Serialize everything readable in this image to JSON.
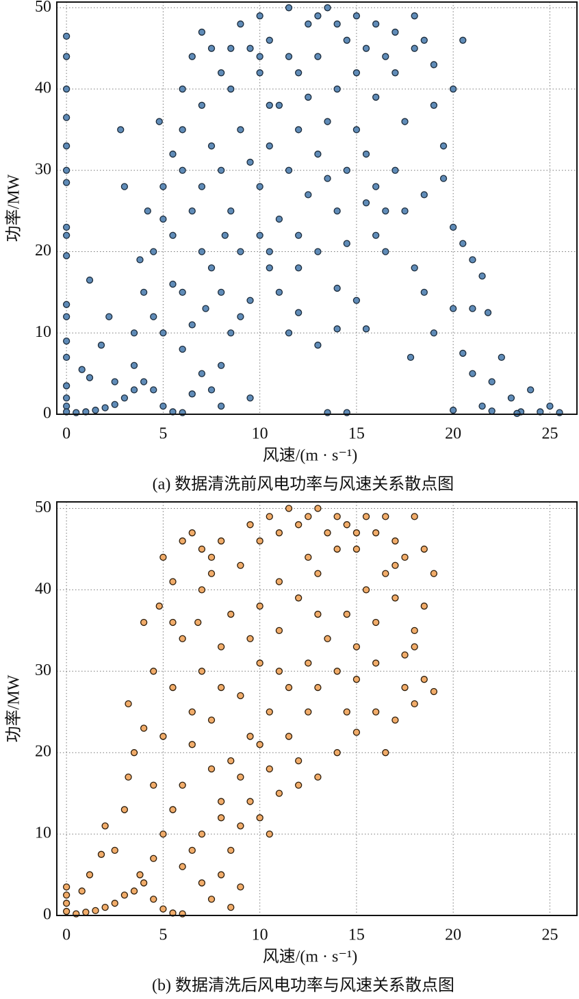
{
  "chart_data": [
    {
      "type": "scatter",
      "title": "(a) 数据清洗前风电功率与风速关系散点图",
      "x_label": "风速/(m · s⁻¹)",
      "y_label": "功率/MW",
      "color": "#4f80b0",
      "edge_color": "#1a2a3a",
      "grid": true,
      "xlim": [
        -0.5,
        26.4
      ],
      "ylim": [
        0,
        50.7
      ],
      "xticks": [
        0,
        5,
        10,
        15,
        20,
        25
      ],
      "yticks": [
        0,
        10,
        20,
        30,
        40,
        50
      ],
      "x": [
        0,
        0,
        0,
        0,
        0,
        0,
        0,
        0,
        0,
        0,
        0,
        0,
        0,
        0,
        0,
        0,
        0,
        0,
        0.5,
        1,
        1.5,
        2,
        2.5,
        3,
        3.5,
        4,
        4.5,
        5,
        5.5,
        6,
        1.2,
        0.8,
        1.8,
        1.2,
        2.8,
        3,
        2.2,
        3.5,
        4,
        4.5,
        4.2,
        5,
        5.5,
        4.8,
        6,
        6.5,
        7,
        7.5,
        8,
        7,
        6,
        5.5,
        6.5,
        7,
        6,
        5,
        6,
        7,
        7.5,
        8,
        8.5,
        9,
        8,
        7.5,
        9,
        8.5,
        8,
        9,
        8.5,
        9.5,
        9,
        10,
        10.5,
        10,
        11,
        10.5,
        10,
        10,
        10.5,
        11,
        9.5,
        11,
        11.5,
        12,
        12,
        12.5,
        11.5,
        13,
        13.5,
        14,
        14.5,
        13,
        14,
        13.5,
        13,
        12.5,
        12,
        13,
        14,
        14.5,
        15,
        15,
        15.5,
        16,
        16.5,
        16,
        15.5,
        16,
        17,
        17.5,
        17,
        18,
        18.5,
        19,
        17.5,
        18.5,
        19.5,
        19,
        20,
        20.5,
        19.5,
        20,
        20.5,
        21,
        21.5,
        21,
        21.8,
        20,
        19,
        20.5,
        21,
        22,
        22.5,
        23,
        21.5,
        20,
        22,
        23.5,
        24,
        25,
        25.5,
        24.5,
        16.5,
        18,
        18.5,
        16,
        15,
        14,
        15.5,
        14,
        13,
        13.5,
        14.5,
        16.5,
        12,
        11.5,
        10.5,
        12,
        3.5,
        2.5,
        4.5,
        5.5,
        3.8,
        5,
        6.5,
        7.2,
        8.2,
        9.5,
        7.5,
        10.5,
        11.5,
        12.5,
        13.5,
        14.5,
        15.5,
        17,
        18,
        15,
        10,
        6,
        7,
        8.5,
        9.5,
        8,
        6.5,
        17.8,
        23.3
      ],
      "values": [
        46.5,
        44,
        40,
        36.5,
        33,
        30,
        28.5,
        23,
        22,
        19.5,
        13.5,
        12,
        9,
        7,
        3.5,
        2,
        1,
        0.3,
        0.2,
        0.3,
        0.5,
        0.8,
        1.2,
        2,
        3,
        4,
        3,
        1,
        0.3,
        0.2,
        4.5,
        5.5,
        8.5,
        16.5,
        35,
        28,
        12,
        10,
        15,
        20,
        25,
        28,
        32,
        36,
        40,
        44,
        47,
        45,
        42,
        38,
        30,
        22,
        25,
        20,
        15,
        10,
        8,
        5,
        3,
        6,
        10,
        12,
        15,
        18,
        20,
        25,
        30,
        35,
        40,
        45,
        48,
        49,
        46,
        42,
        38,
        33,
        28,
        22,
        18,
        15,
        14,
        24,
        30,
        35,
        42,
        48,
        50,
        49,
        50,
        48,
        46,
        44,
        40,
        36,
        32,
        27,
        22,
        20,
        25,
        30,
        35,
        42,
        45,
        48,
        44,
        39,
        32,
        28,
        30,
        36,
        42,
        45,
        46,
        43,
        25,
        27,
        33,
        38,
        40,
        46,
        29,
        23,
        21,
        19,
        17,
        13,
        12.5,
        13,
        10,
        7.5,
        5,
        4,
        7,
        2,
        1,
        0.5,
        0.4,
        0.3,
        3,
        1,
        0.2,
        0.3,
        20,
        18,
        15,
        22,
        14,
        10.5,
        10.5,
        15.5,
        8.5,
        0.2,
        0.2,
        25,
        12.5,
        10,
        20,
        18,
        6,
        4,
        12,
        16,
        19,
        24,
        11,
        13,
        22,
        31,
        33,
        38,
        44,
        39,
        29,
        21,
        26,
        47,
        49,
        49,
        44,
        35,
        28,
        45,
        2,
        1,
        2.5,
        7,
        0.1
      ]
    },
    {
      "type": "scatter",
      "title": "(b) 数据清洗后风电功率与风速关系散点图",
      "x_label": "风速/(m · s⁻¹)",
      "y_label": "功率/MW",
      "color": "#f0a35a",
      "edge_color": "#2a1a08",
      "grid": true,
      "xlim": [
        -0.5,
        26.4
      ],
      "ylim": [
        0,
        50.8
      ],
      "xticks": [
        0,
        5,
        10,
        15,
        20,
        25
      ],
      "yticks": [
        0,
        10,
        20,
        30,
        40,
        50
      ],
      "x": [
        0,
        0,
        0,
        0,
        0.5,
        1,
        1.5,
        2,
        2.5,
        3,
        3.5,
        4,
        4.5,
        5,
        5.5,
        6,
        1.2,
        0.8,
        1.8,
        2,
        2.5,
        3,
        3.2,
        3.5,
        3.2,
        4,
        4.5,
        4,
        4.8,
        5,
        5.5,
        6,
        6.5,
        7,
        7.5,
        8,
        7,
        6,
        5.5,
        5,
        4.5,
        5,
        6,
        7,
        7.5,
        8,
        8.5,
        9,
        8,
        7.5,
        6.5,
        6.5,
        7,
        8,
        8.5,
        9,
        9.5,
        10,
        10.5,
        11,
        11.5,
        12,
        12.5,
        13,
        13.5,
        14,
        14.5,
        15,
        15.5,
        16,
        16.5,
        17,
        17.5,
        18,
        18.5,
        19,
        18.5,
        18,
        17.5,
        18.5,
        19,
        18,
        17,
        16,
        15,
        14.5,
        14,
        13,
        12,
        11,
        10,
        9.5,
        10.5,
        11.5,
        12.5,
        13,
        14,
        15,
        16,
        17,
        16.5,
        15.5,
        14.5,
        13.5,
        12.5,
        11.5,
        10.5,
        9.5,
        8.5,
        9,
        10,
        11,
        12,
        13,
        14,
        12.5,
        11,
        10,
        9.5,
        8,
        7.5,
        6,
        5.5,
        4.5,
        3.8,
        7,
        6.5,
        9,
        8.5,
        10.5,
        12,
        15,
        16,
        17.5,
        16.5,
        18,
        17,
        15,
        13,
        11,
        10,
        9,
        8,
        6.8,
        7.5,
        5.5
      ],
      "values": [
        3.5,
        2.5,
        1.5,
        0.5,
        0.2,
        0.4,
        0.6,
        1,
        1.5,
        2.5,
        3,
        4,
        2,
        0.8,
        0.3,
        0.2,
        5,
        3,
        7.5,
        11,
        8,
        13,
        17,
        20,
        26,
        23,
        30,
        36,
        38,
        44,
        41,
        46,
        47,
        45,
        42,
        46,
        40,
        34,
        28,
        22,
        16,
        10,
        6,
        4,
        2,
        5,
        8,
        11,
        14,
        18,
        21,
        25,
        30,
        33,
        37,
        43,
        48,
        46,
        49,
        47,
        50,
        48,
        49,
        50,
        47,
        49,
        48,
        45,
        49,
        47,
        49,
        46,
        44,
        49,
        45,
        42,
        38,
        35,
        32,
        29,
        27.5,
        26,
        24,
        25,
        22.5,
        25,
        20,
        17,
        16,
        15,
        12,
        14,
        18,
        22,
        25,
        28,
        30,
        33,
        36,
        39,
        42,
        40,
        37,
        34,
        31,
        28,
        25,
        22,
        19,
        27,
        31,
        35,
        39,
        42,
        45,
        44,
        41,
        38,
        34,
        28,
        24,
        16,
        13,
        7,
        5,
        10,
        8,
        3.5,
        1,
        10,
        19,
        29,
        31,
        28,
        20,
        33,
        43,
        47,
        37,
        30,
        21,
        17,
        12,
        36,
        44,
        36
      ]
    }
  ]
}
